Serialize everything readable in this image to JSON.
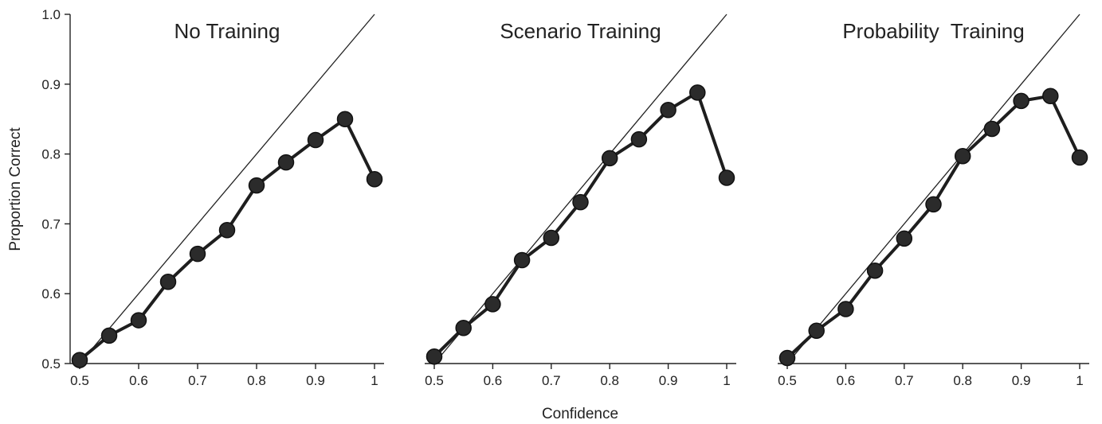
{
  "chart_data": {
    "type": "line",
    "ylabel": "Proportion Correct",
    "xlabel": "Confidence",
    "ylim": [
      0.5,
      1.0
    ],
    "xlim": [
      0.5,
      1.0
    ],
    "yticks": [
      "0.5",
      "0.6",
      "0.7",
      "0.8",
      "0.9",
      "1.0"
    ],
    "xticks": [
      "0.5",
      "0.6",
      "0.7",
      "0.8",
      "0.9",
      "1"
    ],
    "grid": false,
    "reference": "diagonal",
    "colors": {
      "series": "#1e1e1e",
      "marker": "#2b2b2b"
    },
    "panels": [
      {
        "title": "No Training",
        "x": [
          0.5,
          0.55,
          0.6,
          0.65,
          0.7,
          0.75,
          0.8,
          0.85,
          0.9,
          0.95,
          1.0
        ],
        "y": [
          0.505,
          0.54,
          0.562,
          0.617,
          0.657,
          0.691,
          0.755,
          0.788,
          0.82,
          0.85,
          0.764
        ]
      },
      {
        "title": "Scenario Training",
        "x": [
          0.5,
          0.55,
          0.6,
          0.65,
          0.7,
          0.75,
          0.8,
          0.85,
          0.9,
          0.95,
          1.0
        ],
        "y": [
          0.51,
          0.551,
          0.585,
          0.648,
          0.68,
          0.731,
          0.794,
          0.821,
          0.863,
          0.888,
          0.766
        ]
      },
      {
        "title": "Probability  Training",
        "x": [
          0.5,
          0.55,
          0.6,
          0.65,
          0.7,
          0.75,
          0.8,
          0.85,
          0.9,
          0.95,
          1.0
        ],
        "y": [
          0.508,
          0.547,
          0.578,
          0.633,
          0.679,
          0.728,
          0.797,
          0.836,
          0.876,
          0.883,
          0.795
        ]
      }
    ]
  }
}
